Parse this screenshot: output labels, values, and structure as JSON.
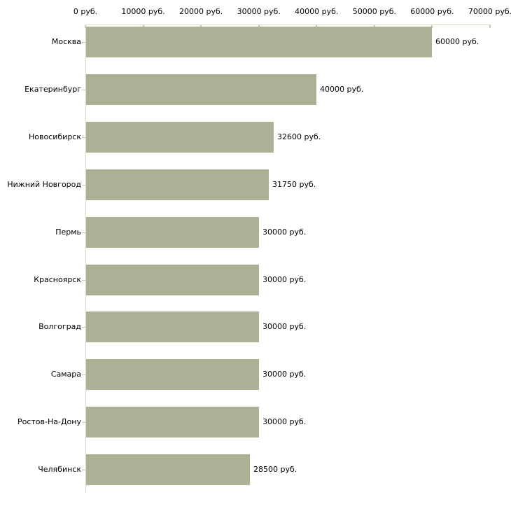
{
  "chart_data": {
    "type": "bar",
    "orientation": "horizontal",
    "title": "",
    "xlabel": "",
    "ylabel": "",
    "unit": "руб.",
    "categories": [
      "Москва",
      "Екатеринбург",
      "Новосибирск",
      "Нижний Новгород",
      "Пермь",
      "Красноярск",
      "Волгоград",
      "Самара",
      "Ростов-На-Дону",
      "Челябинск"
    ],
    "values": [
      60000,
      40000,
      32600,
      31750,
      30000,
      30000,
      30000,
      30000,
      30000,
      28500
    ],
    "value_labels": [
      "60000 руб.",
      "40000 руб.",
      "32600 руб.",
      "31750 руб.",
      "30000 руб.",
      "30000 руб.",
      "30000 руб.",
      "30000 руб.",
      "30000 руб.",
      "28500 руб."
    ],
    "x_ticks": [
      0,
      10000,
      20000,
      30000,
      40000,
      50000,
      60000,
      70000
    ],
    "x_tick_labels": [
      "0 руб.",
      "10000 руб.",
      "20000 руб.",
      "30000 руб.",
      "40000 руб.",
      "50000 руб.",
      "60000 руб.",
      "70000 руб."
    ],
    "xlim": [
      0,
      70000
    ],
    "grid": false,
    "legend": null,
    "colors": {
      "bar": "#abb194",
      "axis_line": "#d9d9c6",
      "tick": "#c9c9ab",
      "text": "#000000",
      "background": "#ffffff"
    }
  }
}
